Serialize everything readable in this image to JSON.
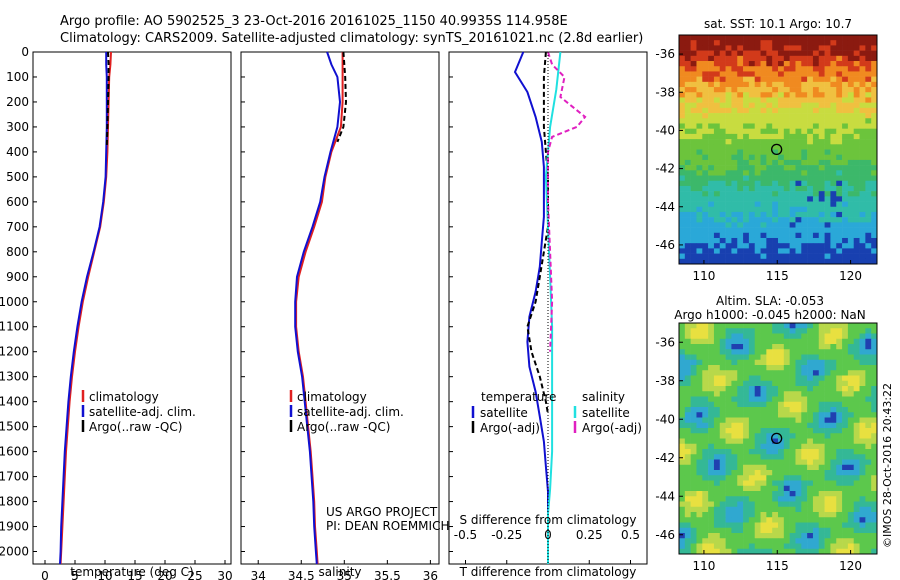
{
  "header": {
    "line1": "Argo profile: AO 5902525_3 23-Oct-2016 20161025_1150 40.9935S 114.958E",
    "line2": "Climatology: CARS2009. Satellite-adjusted climatology: synTS_20161021.nc (2.8d earlier)"
  },
  "colors": {
    "climatology": "#e02020",
    "satellite": "#1010d0",
    "argo": "#000000",
    "sal_satellite": "#20e0e0",
    "sal_argo": "#e020c0"
  },
  "chart_data": [
    {
      "type": "line",
      "xlabel": "temperature (deg C)",
      "ylabel": "",
      "xlim": [
        -2,
        31
      ],
      "ylim": [
        2050,
        0
      ],
      "xticks": [
        "0",
        "5",
        "10",
        "15",
        "20",
        "25",
        "30"
      ],
      "xtick_values": [
        0,
        5,
        10,
        15,
        20,
        25,
        30
      ],
      "yticks": [
        "0",
        "100",
        "200",
        "300",
        "400",
        "500",
        "600",
        "700",
        "800",
        "900",
        "1000",
        "1100",
        "1200",
        "1300",
        "1400",
        "1500",
        "1600",
        "1700",
        "1800",
        "1900",
        "2000"
      ],
      "ytick_values": [
        0,
        100,
        200,
        300,
        400,
        500,
        600,
        700,
        800,
        900,
        1000,
        1100,
        1200,
        1300,
        1400,
        1500,
        1600,
        1700,
        1800,
        1900,
        2000
      ],
      "legend": [
        "climatology",
        "satellite-adj. clim.",
        "Argo(..raw -QC)"
      ],
      "series": [
        {
          "name": "climatology",
          "color": "#e02020",
          "x": [
            11.0,
            10.9,
            10.7,
            10.6,
            10.5,
            10.4,
            10.2,
            9.8,
            9.2,
            8.2,
            7.2,
            6.3,
            5.6,
            5.0,
            4.5,
            4.1,
            3.8,
            3.5,
            3.3,
            3.1,
            2.9,
            2.7,
            2.6
          ],
          "y": [
            0,
            50,
            100,
            200,
            300,
            400,
            500,
            600,
            700,
            800,
            900,
            1000,
            1100,
            1200,
            1300,
            1400,
            1500,
            1600,
            1700,
            1800,
            1900,
            2000,
            2050
          ]
        },
        {
          "name": "satellite-adj. clim.",
          "color": "#1010d0",
          "x": [
            10.2,
            10.2,
            10.3,
            10.3,
            10.3,
            10.2,
            10.1,
            9.7,
            9.1,
            8.1,
            7.0,
            6.1,
            5.4,
            4.8,
            4.3,
            3.9,
            3.6,
            3.3,
            3.1,
            2.9,
            2.7,
            2.6,
            2.5
          ],
          "y": [
            0,
            50,
            100,
            200,
            300,
            400,
            500,
            600,
            700,
            800,
            900,
            1000,
            1100,
            1200,
            1300,
            1400,
            1500,
            1600,
            1700,
            1800,
            1900,
            2000,
            2050
          ]
        },
        {
          "name": "Argo(..raw -QC)",
          "color": "#000000",
          "dash": true,
          "x": [
            10.5,
            10.6,
            10.6,
            10.5,
            10.4,
            10.3
          ],
          "y": [
            0,
            50,
            100,
            200,
            300,
            380
          ]
        }
      ]
    },
    {
      "type": "line",
      "xlabel": "salinity",
      "xlim": [
        33.8,
        36.1
      ],
      "ylim": [
        2050,
        0
      ],
      "xticks": [
        "34",
        "34.5",
        "35",
        "35.5",
        "36"
      ],
      "xtick_values": [
        34,
        34.5,
        35,
        35.5,
        36
      ],
      "legend": [
        "climatology",
        "satellite-adj. clim.",
        "Argo(..raw -QC)"
      ],
      "annotation": [
        "US ARGO PROJECT",
        "PI: DEAN ROEMMICH"
      ],
      "series": [
        {
          "name": "climatology",
          "color": "#e02020",
          "x": [
            34.98,
            34.98,
            34.98,
            34.98,
            34.96,
            34.85,
            34.78,
            34.74,
            34.65,
            34.55,
            34.47,
            34.44,
            34.44,
            34.47,
            34.52,
            34.55,
            34.58,
            34.61,
            34.63,
            34.65,
            34.66,
            34.68,
            34.69
          ],
          "y": [
            0,
            50,
            100,
            200,
            300,
            400,
            500,
            600,
            700,
            800,
            900,
            1000,
            1100,
            1200,
            1300,
            1400,
            1500,
            1600,
            1700,
            1800,
            1900,
            2000,
            2050
          ]
        },
        {
          "name": "satellite-adj. clim.",
          "color": "#1010d0",
          "x": [
            34.8,
            34.85,
            34.92,
            34.95,
            34.92,
            34.84,
            34.77,
            34.72,
            34.63,
            34.53,
            34.45,
            34.43,
            34.43,
            34.46,
            34.51,
            34.54,
            34.57,
            34.6,
            34.62,
            34.64,
            34.65,
            34.67,
            34.68
          ],
          "y": [
            0,
            50,
            100,
            200,
            300,
            400,
            500,
            600,
            700,
            800,
            900,
            1000,
            1100,
            1200,
            1300,
            1400,
            1500,
            1600,
            1700,
            1800,
            1900,
            2000,
            2050
          ]
        },
        {
          "name": "Argo(..raw -QC)",
          "color": "#000000",
          "dash": true,
          "x": [
            34.99,
            35.0,
            35.01,
            35.02,
            34.99,
            34.92
          ],
          "y": [
            0,
            50,
            100,
            200,
            300,
            360
          ]
        }
      ]
    },
    {
      "type": "line",
      "xlabel": "T difference from climatology",
      "title": "S difference from climatology",
      "xlim": [
        -2.4,
        2.4
      ],
      "ylim": [
        2050,
        0
      ],
      "xticks": [
        "-2",
        "-1",
        "0",
        "1",
        "2"
      ],
      "xtick_values": [
        -2,
        -1,
        0,
        1,
        2
      ],
      "sticks": [
        "-0.5",
        "-0.25",
        "0",
        "0.25",
        "0.5"
      ],
      "stick_values": [
        -2,
        -1,
        0,
        1,
        2
      ],
      "legend_temperature": {
        "heading": "temperature",
        "items": [
          "satellite",
          "Argo(-adj)"
        ]
      },
      "legend_salinity": {
        "heading": "salinity",
        "items": [
          "satellite",
          "Argo(-adj)"
        ]
      },
      "series": [
        {
          "name": "T satellite",
          "color": "#1010d0",
          "x": [
            -0.6,
            -0.8,
            -0.5,
            -0.3,
            -0.15,
            -0.1,
            -0.1,
            -0.1,
            -0.15,
            -0.2,
            -0.3,
            -0.45,
            -0.5,
            -0.45,
            -0.3,
            -0.2,
            -0.1,
            -0.05,
            0.0,
            0.0,
            0.0,
            0.0,
            0.0
          ],
          "y": [
            0,
            80,
            160,
            260,
            360,
            460,
            560,
            660,
            760,
            860,
            960,
            1060,
            1160,
            1260,
            1360,
            1460,
            1560,
            1660,
            1760,
            1860,
            1960,
            2000,
            2050
          ]
        },
        {
          "name": "T Argo(-adj)",
          "color": "#000000",
          "dash": true,
          "x": [
            -0.05,
            -0.1,
            -0.1,
            -0.1,
            -0.05,
            0.0,
            0.0,
            0.0,
            -0.1,
            -0.2,
            -0.3,
            -0.5,
            -0.4,
            -0.2,
            -0.05,
            0.0
          ],
          "y": [
            0,
            100,
            200,
            300,
            400,
            500,
            600,
            700,
            800,
            900,
            1000,
            1100,
            1200,
            1300,
            1400,
            1450
          ]
        },
        {
          "name": "S satellite",
          "color": "#20e0e0",
          "x": [
            0.3,
            0.2,
            0.05,
            -0.05,
            0.0,
            0.05,
            0.1,
            0.1,
            0.1,
            0.1,
            0.05,
            0.0,
            0.0,
            0.0,
            0.0
          ],
          "y": [
            0,
            150,
            300,
            500,
            700,
            900,
            1100,
            1300,
            1450,
            1600,
            1750,
            1850,
            1950,
            2000,
            2050
          ]
        },
        {
          "name": "S Argo(-adj)",
          "color": "#e020c0",
          "dash": true,
          "x": [
            0.0,
            0.1,
            0.4,
            0.3,
            0.9,
            0.7,
            0.1,
            0.0,
            0.0,
            0.05,
            0.1,
            0.05
          ],
          "y": [
            0,
            50,
            100,
            180,
            260,
            300,
            340,
            400,
            600,
            800,
            1000,
            1200
          ]
        }
      ]
    },
    {
      "type": "heatmap",
      "title": "sat. SST: 10.1  Argo: 10.7",
      "xlim": [
        108.3,
        121.8
      ],
      "ylim": [
        -47,
        -35
      ],
      "xticks": [
        "110",
        "115",
        "120"
      ],
      "xtick_values": [
        110,
        115,
        120
      ],
      "yticks": [
        "-36",
        "-38",
        "-40",
        "-42",
        "-44",
        "-46"
      ],
      "ytick_values": [
        -36,
        -38,
        -40,
        -42,
        -44,
        -46
      ],
      "marker": {
        "lon": 114.958,
        "lat": -40.9935
      }
    },
    {
      "type": "heatmap",
      "title_lines": [
        "Altim. SLA: -0.053",
        "Argo h1000: -0.045 h2000: NaN"
      ],
      "xlim": [
        108.3,
        121.8
      ],
      "ylim": [
        -47,
        -35
      ],
      "xticks": [
        "110",
        "115",
        "120"
      ],
      "xtick_values": [
        110,
        115,
        120
      ],
      "yticks": [
        "-36",
        "-38",
        "-40",
        "-42",
        "-44",
        "-46"
      ],
      "ytick_values": [
        -36,
        -38,
        -40,
        -42,
        -44,
        -46
      ],
      "marker": {
        "lon": 114.958,
        "lat": -40.9935
      }
    }
  ],
  "credit": "©IMOS 28-Oct-2016 20:43:22"
}
